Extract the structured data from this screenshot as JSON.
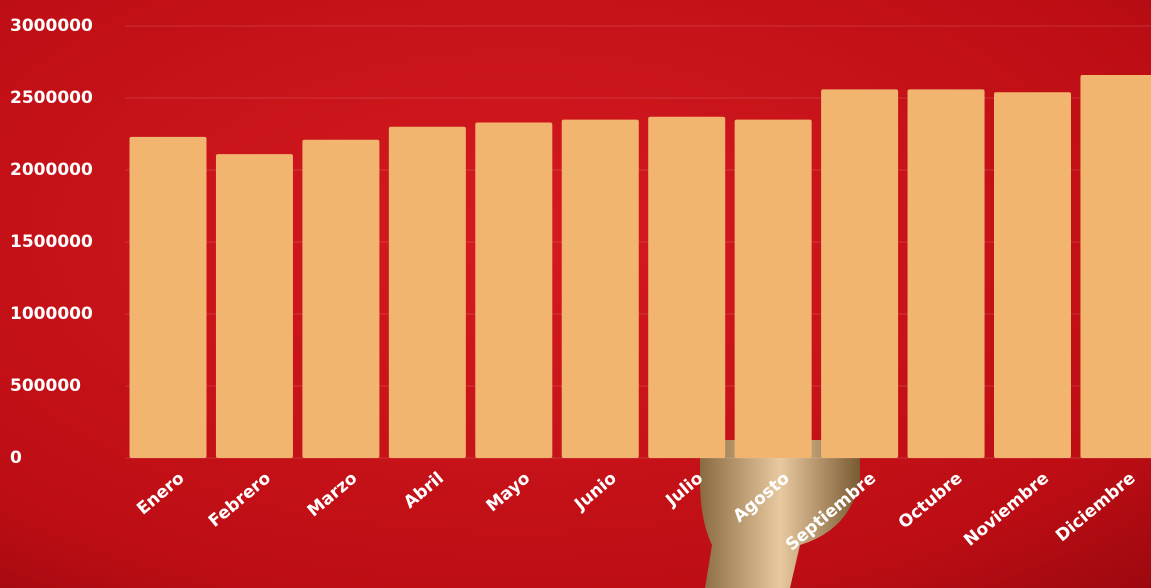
{
  "chart_data": {
    "type": "bar",
    "categories": [
      "Enero",
      "Febrero",
      "Marzo",
      "Abril",
      "Mayo",
      "Junio",
      "Julio",
      "Agosto",
      "Septiembre",
      "Octubre",
      "Noviembre",
      "Diciembre"
    ],
    "values": [
      2230000,
      2110000,
      2210000,
      2300000,
      2330000,
      2350000,
      2370000,
      2350000,
      2560000,
      2560000,
      2540000,
      2660000
    ],
    "color": "#f2b56f",
    "ylim": [
      0,
      3000000
    ],
    "yticks": [
      0,
      500000,
      1000000,
      1500000,
      2000000,
      2500000,
      3000000
    ],
    "grid": true
  }
}
